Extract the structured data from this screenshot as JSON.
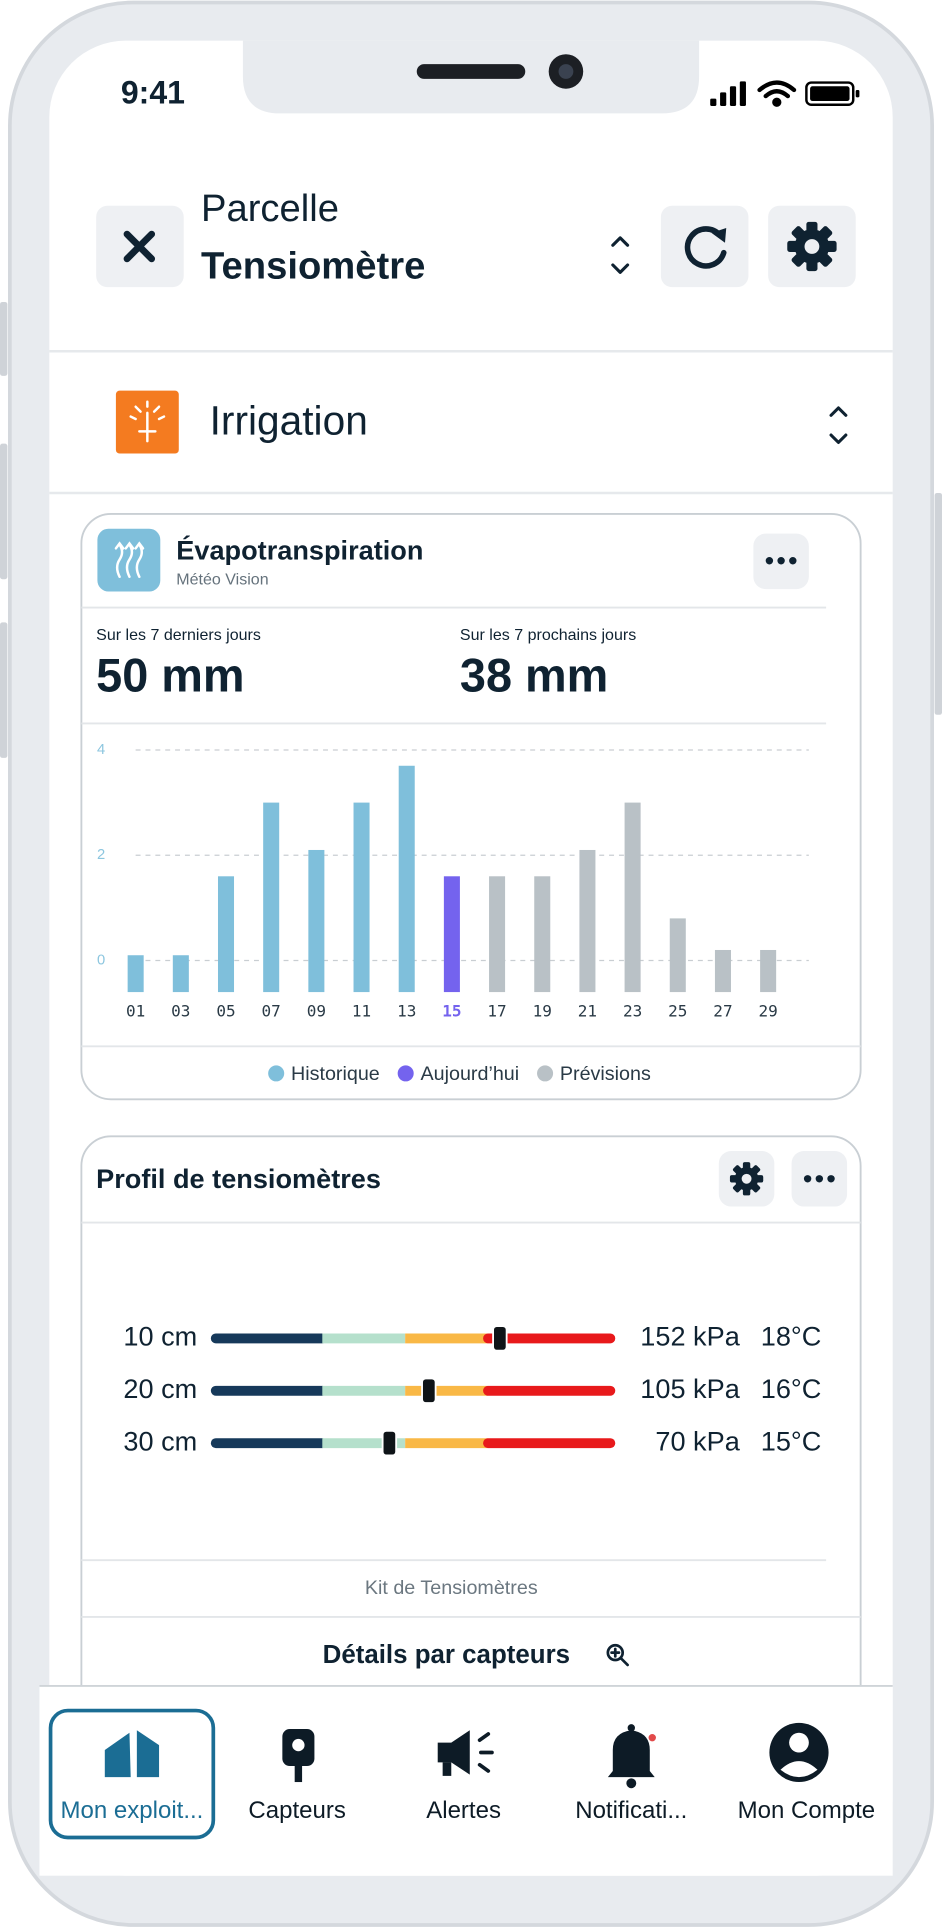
{
  "status_bar": {
    "time": "9:41"
  },
  "header": {
    "subtitle": "Parcelle",
    "title": "Tensiomètre"
  },
  "section": {
    "title": "Irrigation"
  },
  "evapotranspiration": {
    "title": "Évapotranspiration",
    "source": "Météo Vision",
    "stats": [
      {
        "label": "Sur les 7 derniers jours",
        "value": "50 mm"
      },
      {
        "label": "Sur les 7 prochains jours",
        "value": "38 mm"
      }
    ]
  },
  "chart_data": {
    "type": "bar",
    "categories": [
      "01",
      "03",
      "05",
      "07",
      "09",
      "11",
      "13",
      "15",
      "17",
      "19",
      "21",
      "23",
      "25",
      "27",
      "29"
    ],
    "values": [
      0.1,
      0.1,
      1.6,
      3.0,
      2.1,
      3.0,
      3.7,
      1.6,
      1.6,
      1.6,
      2.1,
      3.0,
      0.8,
      0.2,
      0.2
    ],
    "colors": [
      "#7fbfdb",
      "#7fbfdb",
      "#7fbfdb",
      "#7fbfdb",
      "#7fbfdb",
      "#7fbfdb",
      "#7fbfdb",
      "#7463ee",
      "#b9c1c6",
      "#b9c1c6",
      "#b9c1c6",
      "#b9c1c6",
      "#b9c1c6",
      "#b9c1c6",
      "#b9c1c6"
    ],
    "legend": [
      {
        "name": "Historique",
        "color": "#7fbfdb"
      },
      {
        "name": "Aujourd’hui",
        "color": "#7463ee"
      },
      {
        "name": "Prévisions",
        "color": "#b9c1c6"
      }
    ],
    "ylim": [
      -0.6,
      4.2
    ],
    "yticks": [
      0,
      2,
      4
    ],
    "grid": true
  },
  "tensiometer_profile": {
    "title": "Profil de tensiomètres",
    "zones": [
      {
        "color": "#16395a",
        "end": 27
      },
      {
        "color": "#b5e0cc",
        "end": 48
      },
      {
        "color": "#f9b846",
        "end": 69
      },
      {
        "color": "#e8191b",
        "end": 100
      }
    ],
    "rows": [
      {
        "depth": "10 cm",
        "position": 72,
        "value": "152 kPa",
        "temperature": "18°C"
      },
      {
        "depth": "20 cm",
        "position": 54,
        "value": "105 kPa",
        "temperature": "16°C"
      },
      {
        "depth": "30 cm",
        "position": 44,
        "value": "70 kPa",
        "temperature": "15°C"
      }
    ],
    "footer": "Kit de Tensiomètres",
    "link": "Détails par capteurs"
  },
  "tab_bar": {
    "items": [
      {
        "label": "Mon exploit...",
        "active": true
      },
      {
        "label": "Capteurs",
        "active": false
      },
      {
        "label": "Alertes",
        "active": false
      },
      {
        "label": "Notificati...",
        "active": false
      },
      {
        "label": "Mon Compte",
        "active": false
      }
    ]
  }
}
